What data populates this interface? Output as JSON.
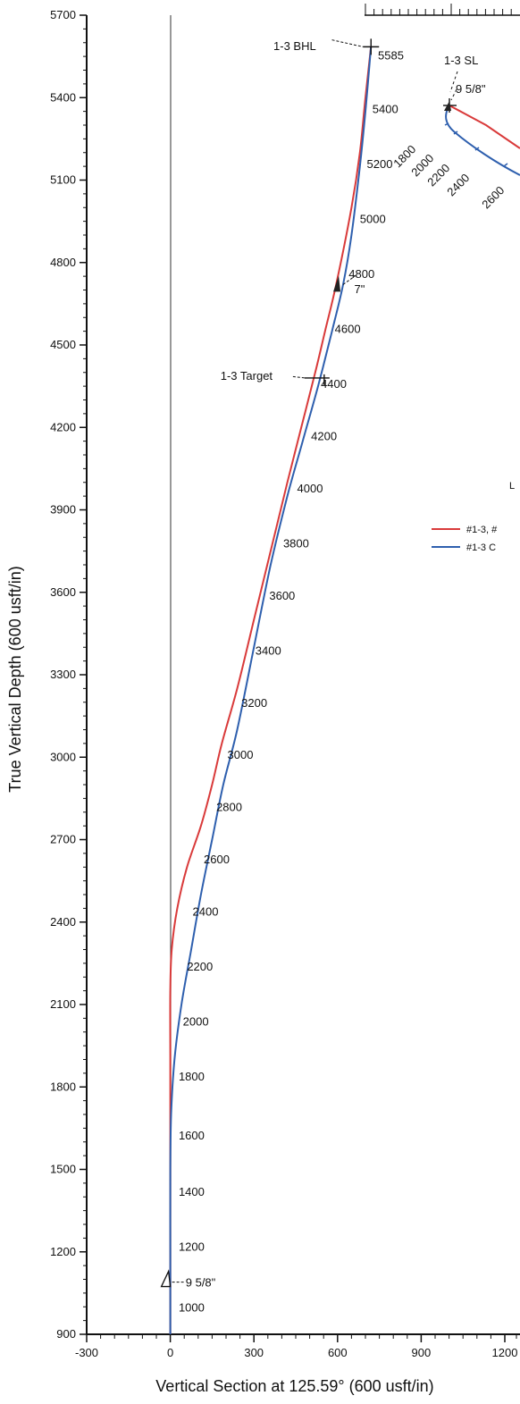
{
  "chart_data": [
    {
      "type": "line",
      "title": "",
      "xlabel": "Vertical Section at 125.59° (600 usft/in)",
      "ylabel": "True Vertical Depth (600 usft/in)",
      "xlim": [
        -300,
        1200
      ],
      "ylim": [
        5700,
        900
      ],
      "y_inverted": true,
      "x_ticks": [
        "-300",
        "0",
        "300",
        "600",
        "900",
        "1200"
      ],
      "x_tick_values": [
        -300,
        0,
        300,
        600,
        900,
        1200
      ],
      "y_ticks": [
        "900",
        "1200",
        "1500",
        "1800",
        "2100",
        "2400",
        "2700",
        "3000",
        "3300",
        "3600",
        "3900",
        "4200",
        "4500",
        "4800",
        "5100",
        "5400",
        "5700"
      ],
      "y_tick_values": [
        900,
        1200,
        1500,
        1800,
        2100,
        2400,
        2700,
        3000,
        3300,
        3600,
        3900,
        4200,
        4500,
        4800,
        5100,
        5400,
        5700
      ],
      "grid": false,
      "series": [
        {
          "name": "#1-3, #",
          "color": "#d93a3a",
          "x": [
            0,
            0,
            0,
            0,
            0,
            0,
            5,
            25,
            60,
            110,
            150,
            185,
            240,
            300,
            360,
            420,
            470,
            520,
            555,
            595,
            650,
            680,
            700,
            720
          ],
          "y": [
            900,
            1100,
            1300,
            1600,
            1900,
            2150,
            2300,
            2450,
            2600,
            2750,
            2900,
            3050,
            3250,
            3500,
            3750,
            4000,
            4200,
            4400,
            4550,
            4720,
            5000,
            5200,
            5400,
            5585
          ]
        },
        {
          "name": "#1-3 C",
          "color": "#2e5fae",
          "x": [
            0,
            0,
            0,
            3,
            15,
            40,
            75,
            110,
            150,
            190,
            240,
            300,
            360,
            420,
            475,
            530,
            580,
            620,
            650,
            680,
            700,
            720
          ],
          "y": [
            900,
            1200,
            1500,
            1700,
            1900,
            2100,
            2300,
            2500,
            2700,
            2900,
            3100,
            3400,
            3700,
            3950,
            4150,
            4350,
            4550,
            4720,
            4900,
            5150,
            5350,
            5585
          ]
        }
      ],
      "md_labels": [
        {
          "text": "1000",
          "x": 30,
          "y": 1000
        },
        {
          "text": "1200",
          "x": 30,
          "y": 1220
        },
        {
          "text": "1400",
          "x": 30,
          "y": 1420
        },
        {
          "text": "1600",
          "x": 30,
          "y": 1625
        },
        {
          "text": "1800",
          "x": 30,
          "y": 1840
        },
        {
          "text": "2000",
          "x": 45,
          "y": 2040
        },
        {
          "text": "2200",
          "x": 60,
          "y": 2240
        },
        {
          "text": "2400",
          "x": 80,
          "y": 2440
        },
        {
          "text": "2600",
          "x": 120,
          "y": 2630
        },
        {
          "text": "2800",
          "x": 165,
          "y": 2820
        },
        {
          "text": "3000",
          "x": 205,
          "y": 3010
        },
        {
          "text": "3200",
          "x": 255,
          "y": 3200
        },
        {
          "text": "3400",
          "x": 305,
          "y": 3390
        },
        {
          "text": "3600",
          "x": 355,
          "y": 3590
        },
        {
          "text": "3800",
          "x": 405,
          "y": 3780
        },
        {
          "text": "4000",
          "x": 455,
          "y": 3980
        },
        {
          "text": "4200",
          "x": 505,
          "y": 4170
        },
        {
          "text": "4400",
          "x": 540,
          "y": 4360
        },
        {
          "text": "4600",
          "x": 590,
          "y": 4560
        },
        {
          "text": "4800",
          "x": 640,
          "y": 4760
        },
        {
          "text": "5000",
          "x": 680,
          "y": 4960
        },
        {
          "text": "5200",
          "x": 705,
          "y": 5160
        },
        {
          "text": "5400",
          "x": 725,
          "y": 5360
        },
        {
          "text": "5585",
          "x": 745,
          "y": 5555
        }
      ],
      "annotations": [
        {
          "text": "9 5/8\"",
          "x": 55,
          "y": 1090
        },
        {
          "text": "1-3 Target",
          "x": 180,
          "y": 4390
        },
        {
          "text": "7\"",
          "x": 660,
          "y": 4705
        },
        {
          "text": "1-3 BHL",
          "x": 370,
          "y": 5590
        }
      ]
    },
    {
      "type": "line",
      "title": "",
      "series": [
        {
          "name": "#1-3, #",
          "color": "#d93a3a"
        },
        {
          "name": "#1-3 C",
          "color": "#2e5fae"
        }
      ],
      "md_labels": [
        "1800",
        "2000",
        "2200",
        "2400",
        "2600"
      ],
      "annotations": [
        "1-3 SL",
        "9 5/8\""
      ]
    }
  ],
  "legend": {
    "header": "L",
    "items": [
      {
        "label": "#1-3, #",
        "color": "#d93a3a"
      },
      {
        "label": "#1-3 C",
        "color": "#2e5fae"
      }
    ]
  }
}
